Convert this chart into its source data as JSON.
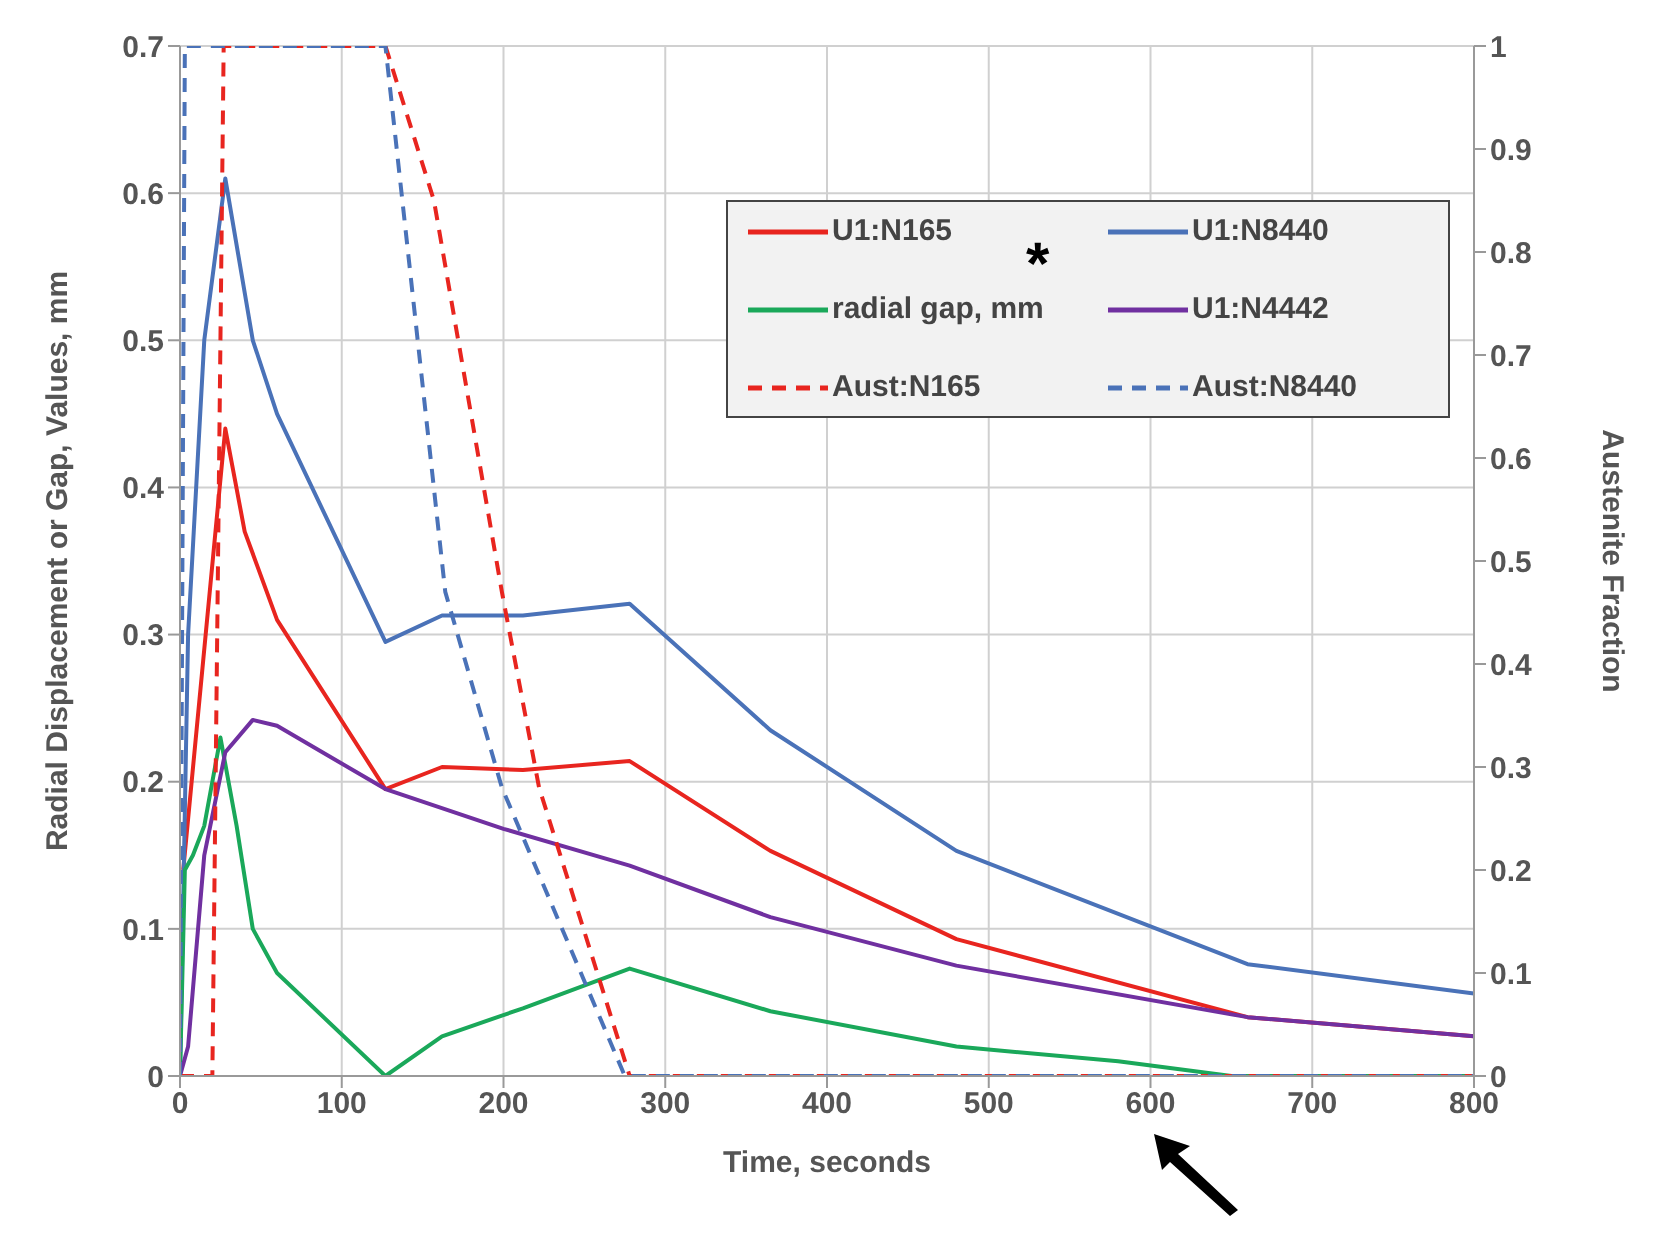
{
  "chart_data": {
    "type": "line",
    "xlabel": "Time, seconds",
    "ylabel": "Radial Displacement or Gap, Values, mm",
    "y2label": "Austenite Fraction",
    "annotations": [
      "*"
    ],
    "xlim": [
      0,
      800
    ],
    "xticks": [
      0,
      100,
      200,
      300,
      400,
      500,
      600,
      700,
      800
    ],
    "ylim": [
      0,
      0.7
    ],
    "yticks": [
      0,
      0.1,
      0.2,
      0.3,
      0.4,
      0.5,
      0.6,
      0.7
    ],
    "y2lim": [
      0,
      1
    ],
    "y2ticks": [
      0,
      0.1,
      0.2,
      0.3,
      0.4,
      0.5,
      0.6,
      0.7,
      0.8,
      0.9,
      1
    ],
    "grid": true,
    "legend": "top right",
    "marker": "none",
    "series": [
      {
        "name": "U1:N165",
        "color": "#e8251f",
        "line_style": "solid",
        "x": [
          2,
          28,
          40,
          60,
          127,
          162,
          212,
          278,
          365,
          480,
          660,
          800
        ],
        "values": [
          0.14,
          0.44,
          0.37,
          0.31,
          0.195,
          0.21,
          0.208,
          0.214,
          0.153,
          0.093,
          0.04,
          0.027
        ]
      },
      {
        "name": "U1:N8440",
        "color": "#4a72b8",
        "line_style": "solid",
        "x": [
          0,
          5,
          15,
          28,
          45,
          60,
          127,
          162,
          212,
          278,
          365,
          480,
          660,
          800
        ],
        "values": [
          0,
          0.3,
          0.5,
          0.61,
          0.5,
          0.45,
          0.295,
          0.313,
          0.313,
          0.321,
          0.235,
          0.153,
          0.076,
          0.056
        ]
      },
      {
        "name": "radial gap, mm",
        "color": "#1aa85a",
        "line_style": "solid",
        "x": [
          0,
          3,
          8,
          15,
          25,
          35,
          45,
          60,
          127,
          162,
          212,
          278,
          365,
          480,
          580,
          650,
          800
        ],
        "values": [
          0,
          0.14,
          0.15,
          0.17,
          0.23,
          0.17,
          0.1,
          0.07,
          0,
          0.027,
          0.046,
          0.073,
          0.044,
          0.02,
          0.01,
          0,
          0
        ]
      },
      {
        "name": "U1:N4442",
        "color": "#7030a0",
        "line_style": "solid",
        "x": [
          0,
          5,
          15,
          28,
          45,
          60,
          127,
          200,
          278,
          365,
          480,
          660,
          800
        ],
        "values": [
          0,
          0.02,
          0.15,
          0.22,
          0.242,
          0.238,
          0.195,
          0.168,
          0.143,
          0.108,
          0.075,
          0.04,
          0.027
        ]
      },
      {
        "name": "Aust:N165",
        "color": "#e8251f",
        "line_style": "dashed",
        "axis": "y2",
        "x": [
          0,
          20,
          27,
          127,
          157,
          199,
          222,
          278,
          800
        ],
        "values": [
          0,
          0,
          1,
          1,
          0.85,
          0.47,
          0.28,
          0,
          0
        ]
      },
      {
        "name": "Aust:N8440",
        "color": "#4a72b8",
        "line_style": "dashed",
        "axis": "y2",
        "x": [
          0,
          3,
          127,
          164,
          199,
          275,
          800
        ],
        "values": [
          0,
          1,
          1,
          0.47,
          0.28,
          0,
          0
        ]
      }
    ]
  }
}
